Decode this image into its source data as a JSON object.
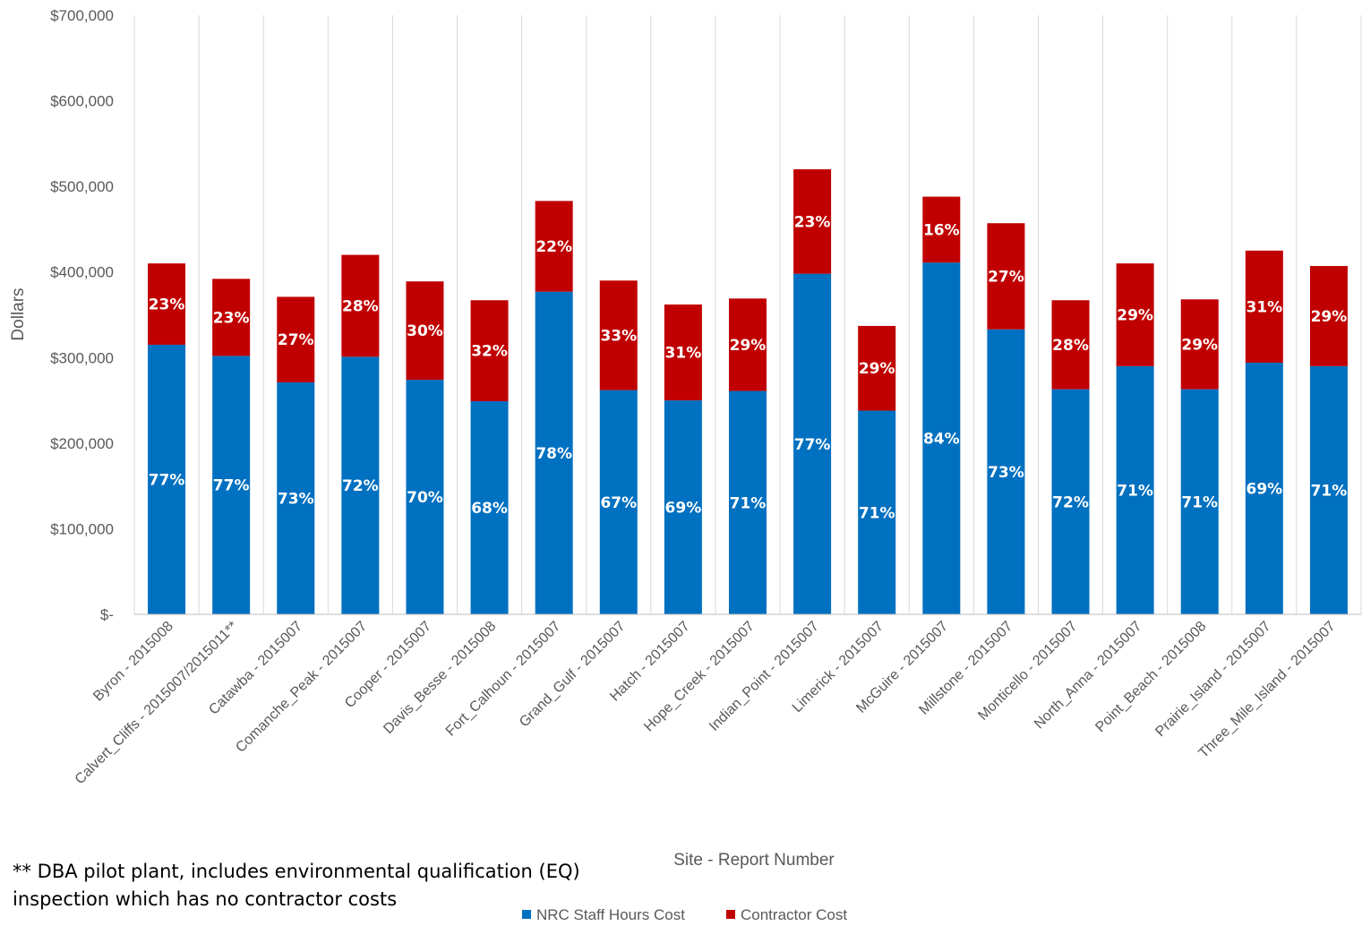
{
  "footnote": {
    "line1": "** DBA pilot plant, includes environmental qualification (EQ)",
    "line2": "inspection which has no contractor costs"
  },
  "chart_data": {
    "type": "bar",
    "stacked": true,
    "xlabel": "Site - Report Number",
    "ylabel": "Dollars",
    "ylim": [
      0,
      700000
    ],
    "yticks": [
      0,
      100000,
      200000,
      300000,
      400000,
      500000,
      600000,
      700000
    ],
    "ytick_labels": [
      "$-",
      "$100,000",
      "$200,000",
      "$300,000",
      "$400,000",
      "$500,000",
      "$600,000",
      "$700,000"
    ],
    "grid": "vertical",
    "legend_position": "bottom",
    "categories": [
      "Byron - 2015008",
      "Calvert_Cliffs - 2015007/2015011**",
      "Catawba - 2015007",
      "Comanche_Peak - 2015007",
      "Cooper - 2015007",
      "Davis_Besse - 2015008",
      "Fort_Calhoun - 2015007",
      "Grand_Gulf - 2015007",
      "Hatch - 2015007",
      "Hope_Creek - 2015007",
      "Indian_Point - 2015007",
      "Limerick - 2015007",
      "McGuire - 2015007",
      "Millstone - 2015007",
      "Monticello - 2015007",
      "North_Anna - 2015007",
      "Point_Beach - 2015008",
      "Prairie_Island - 2015007",
      "Three_Mile_Island - 2015007"
    ],
    "series": [
      {
        "name": "NRC Staff Hours Cost",
        "color": "#0070C0",
        "values": [
          315000,
          302000,
          271000,
          301000,
          274000,
          249000,
          377000,
          262000,
          250000,
          261000,
          398000,
          238000,
          411000,
          333000,
          263000,
          290000,
          263000,
          294000,
          290000
        ],
        "labels": [
          "77%",
          "77%",
          "73%",
          "72%",
          "70%",
          "68%",
          "78%",
          "67%",
          "69%",
          "71%",
          "77%",
          "71%",
          "84%",
          "73%",
          "72%",
          "71%",
          "71%",
          "69%",
          "71%"
        ]
      },
      {
        "name": "Contractor Cost",
        "color": "#C00000",
        "values": [
          95000,
          90000,
          100000,
          119000,
          115000,
          118000,
          106000,
          128000,
          112000,
          108000,
          122000,
          99000,
          77000,
          124000,
          104000,
          120000,
          105000,
          131000,
          117000
        ],
        "labels": [
          "23%",
          "23%",
          "27%",
          "28%",
          "30%",
          "32%",
          "22%",
          "33%",
          "31%",
          "29%",
          "23%",
          "29%",
          "16%",
          "27%",
          "28%",
          "29%",
          "29%",
          "31%",
          "29%"
        ]
      }
    ]
  }
}
